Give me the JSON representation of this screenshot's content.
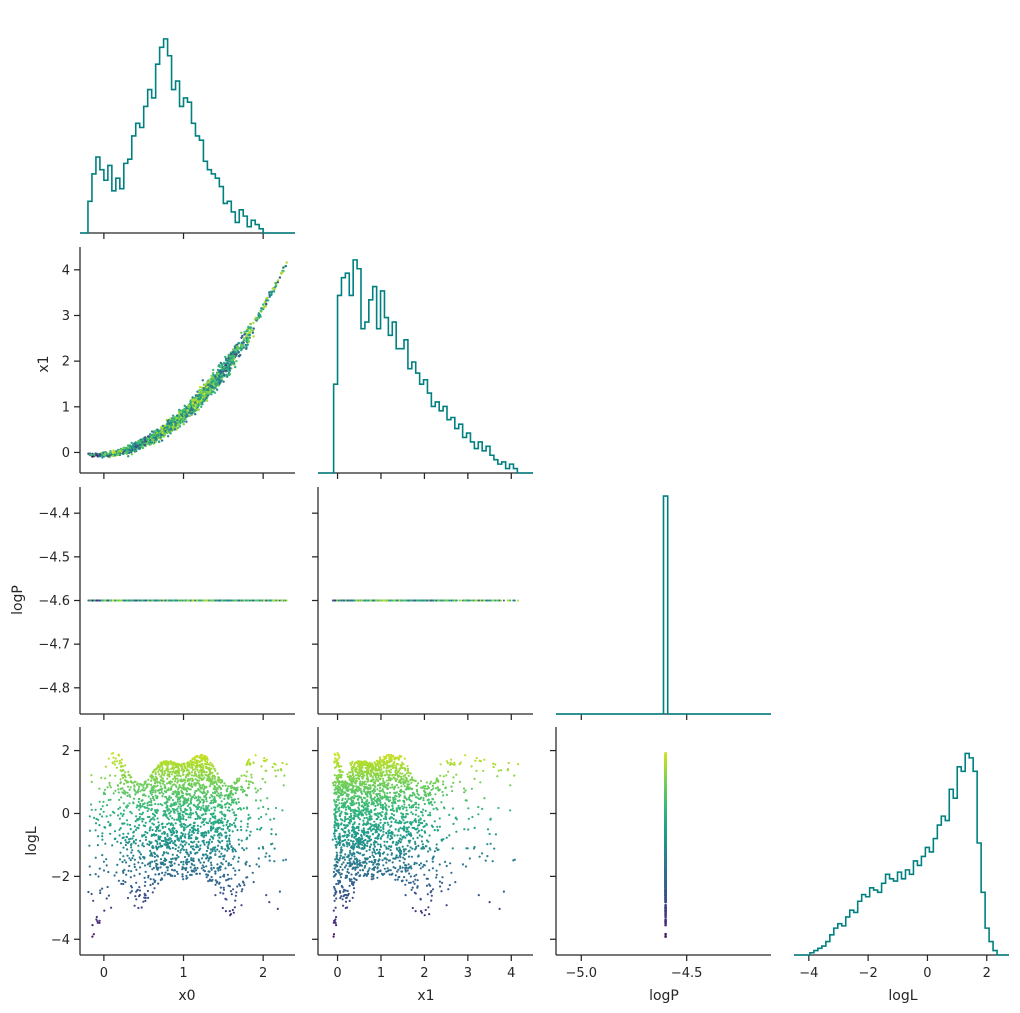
{
  "chart_data": {
    "type": "scatter",
    "kind": "corner-plot",
    "parameters": [
      "x0",
      "x1",
      "logP",
      "logL"
    ],
    "hist_color": "#008080",
    "colormap": "viridis",
    "color_by": "logL",
    "axes": {
      "x0": {
        "range": [
          -0.3,
          2.4
        ],
        "ticks": [
          0,
          1,
          2
        ],
        "tick_labels": [
          "0",
          "1",
          "2"
        ]
      },
      "x1": {
        "range": [
          -0.45,
          4.5
        ],
        "ticks": [
          0,
          1,
          2,
          3,
          4
        ],
        "tick_labels": [
          "0",
          "1",
          "2",
          "3",
          "4"
        ]
      },
      "logP": {
        "range": [
          -4.86,
          -4.34
        ],
        "ticks": [
          -4.8,
          -4.7,
          -4.6,
          -4.5,
          -4.4
        ],
        "tick_labels": [
          "−4.8",
          "−4.7",
          "−4.6",
          "−4.5",
          "−4.4"
        ]
      },
      "logP_x": {
        "range": [
          -5.12,
          -4.1
        ],
        "ticks": [
          -5.0,
          -4.5
        ],
        "tick_labels": [
          "−5.0",
          "−4.5"
        ]
      },
      "logL": {
        "range": [
          -4.5,
          2.75
        ],
        "ticks": [
          -4,
          -2,
          0,
          2
        ],
        "tick_labels": [
          "−4",
          "−2",
          "0",
          "2"
        ]
      }
    },
    "hist_x0": {
      "edges": [
        -0.3,
        2.4
      ],
      "values": [
        0,
        0,
        0.15,
        0.28,
        0.36,
        0.3,
        0.25,
        0.32,
        0.2,
        0.26,
        0.21,
        0.33,
        0.35,
        0.46,
        0.52,
        0.5,
        0.6,
        0.68,
        0.64,
        0.8,
        0.88,
        0.92,
        0.84,
        0.68,
        0.72,
        0.6,
        0.64,
        0.62,
        0.52,
        0.46,
        0.44,
        0.34,
        0.3,
        0.28,
        0.26,
        0.22,
        0.14,
        0.15,
        0.1,
        0.05,
        0.11,
        0.08,
        0.03,
        0.06,
        0.04,
        0.02,
        0,
        0,
        0,
        0,
        0,
        0,
        0,
        0
      ]
    },
    "hist_x1": {
      "edges": [
        -0.45,
        4.5
      ],
      "values": [
        0,
        0,
        0,
        0,
        0.4,
        0.8,
        0.88,
        0.9,
        0.8,
        0.96,
        0.92,
        0.65,
        0.68,
        0.78,
        0.84,
        0.65,
        0.82,
        0.7,
        0.62,
        0.68,
        0.56,
        0.56,
        0.6,
        0.47,
        0.5,
        0.45,
        0.4,
        0.42,
        0.36,
        0.3,
        0.32,
        0.28,
        0.3,
        0.24,
        0.25,
        0.2,
        0.22,
        0.16,
        0.18,
        0.14,
        0.11,
        0.14,
        0.1,
        0.12,
        0.08,
        0.06,
        0.04,
        0.05,
        0.02,
        0.04,
        0.02,
        0,
        0,
        0,
        0
      ]
    },
    "hist_logP": {
      "center": -4.6,
      "bin_width": 0.02,
      "peak_fraction": 0.96
    },
    "hist_logL": {
      "edges": [
        -4.5,
        2.75
      ],
      "values": [
        0,
        0,
        0,
        0,
        0.01,
        0.02,
        0.03,
        0.04,
        0.06,
        0.09,
        0.12,
        0.14,
        0.13,
        0.17,
        0.2,
        0.19,
        0.24,
        0.27,
        0.26,
        0.3,
        0.29,
        0.28,
        0.32,
        0.36,
        0.34,
        0.33,
        0.37,
        0.34,
        0.38,
        0.36,
        0.42,
        0.4,
        0.44,
        0.48,
        0.46,
        0.52,
        0.58,
        0.62,
        0.6,
        0.74,
        0.7,
        0.84,
        0.82,
        0.9,
        0.88,
        0.82,
        0.5,
        0.28,
        0.12,
        0.06,
        0.02,
        0,
        0,
        0
      ]
    },
    "xlabels": [
      "x0",
      "x1",
      "logP",
      "logL"
    ],
    "ylabels": [
      "",
      "x1",
      "logP",
      "logL"
    ]
  }
}
